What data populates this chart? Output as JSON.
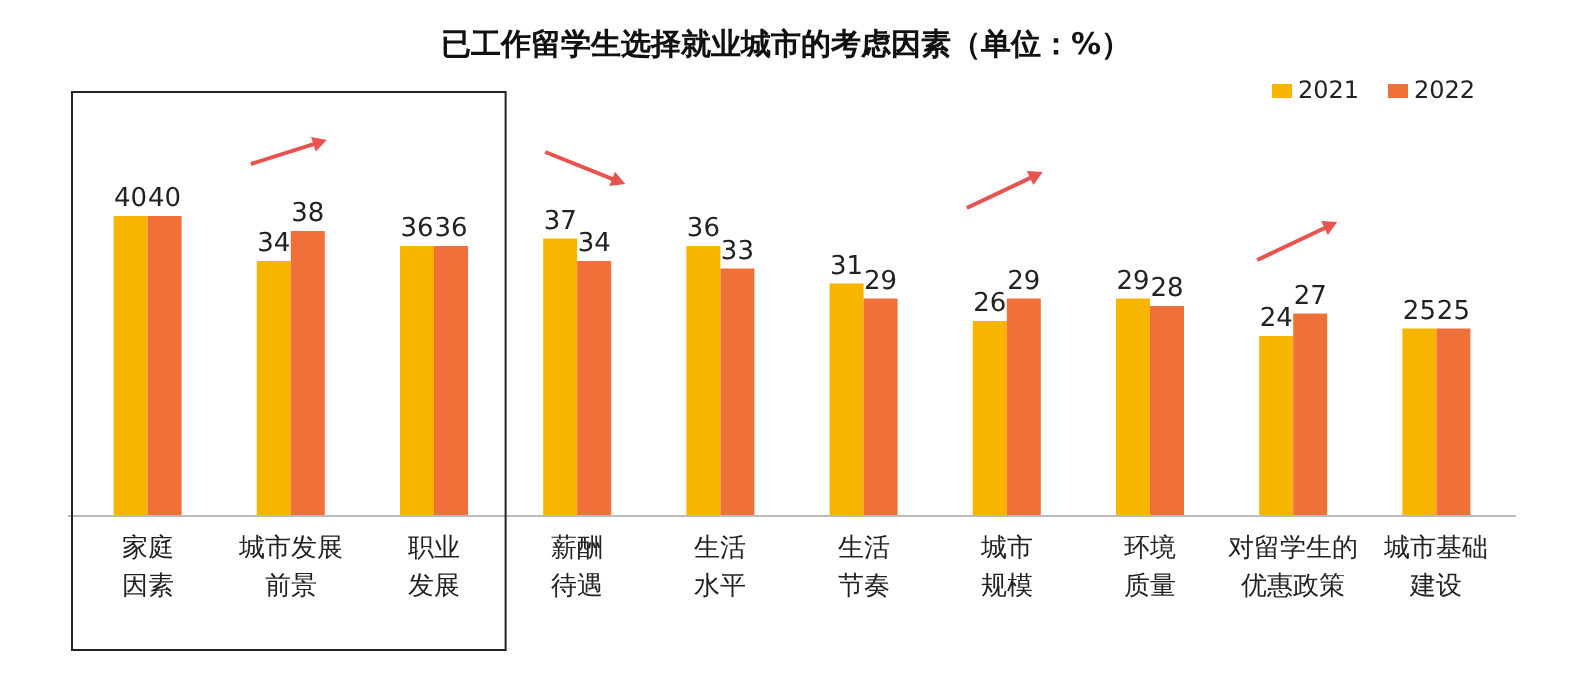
{
  "chart_data": {
    "type": "bar",
    "title": "已工作留学生选择就业城市的考虑因素（单位：%）",
    "categories": [
      "家庭因素",
      "城市发展前景",
      "职业发展",
      "薪酬待遇",
      "生活水平",
      "生活节奏",
      "城市规模",
      "环境质量",
      "对留学生的优惠政策",
      "城市基础建设"
    ],
    "series": [
      {
        "name": "2021",
        "color": "#f7b500",
        "values": [
          40,
          34,
          36,
          37,
          36,
          31,
          26,
          29,
          24,
          25
        ]
      },
      {
        "name": "2022",
        "color": "#f0703a",
        "values": [
          40,
          38,
          36,
          34,
          33,
          29,
          29,
          28,
          27,
          25
        ]
      }
    ],
    "data_labels": true,
    "legend": "top right"
  }
}
